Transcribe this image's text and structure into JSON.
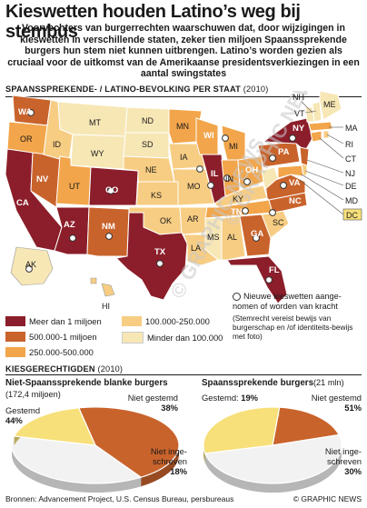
{
  "header": {
    "title": "Kieswetten houden Latino’s weg bij stembus",
    "intro": "Voorvechters van burgerrechten waarschuwen dat, door wijzigingen in kieswetten in verschillende staten, zeker tien miljoen Spaanssprekende burgers hun stem niet kunnen uitbrengen. Latino’s worden gezien als cruciaal voor de uitkomst van de Amerikaanse presidentsverkiezingen in een aantal swingstates"
  },
  "map_section": {
    "heading": "SPAANSSPREKENDE- / LATINO-BEVOLKING PER STAAT",
    "year": "(2010)"
  },
  "states": {
    "WA": "WA",
    "OR": "OR",
    "CA": "CA",
    "NV": "NV",
    "ID": "ID",
    "MT": "MT",
    "WY": "WY",
    "UT": "UT",
    "CO": "CO",
    "AZ": "AZ",
    "NM": "NM",
    "ND": "ND",
    "SD": "SD",
    "NE": "NE",
    "KS": "KS",
    "OK": "OK",
    "TX": "TX",
    "MN": "MN",
    "IA": "IA",
    "MO": "MO",
    "AR": "AR",
    "LA": "LA",
    "WI": "WI",
    "IL": "IL",
    "MI": "MI",
    "IN": "IN",
    "OH": "OH",
    "KY": "KY",
    "TN": "TN",
    "MS": "MS",
    "AL": "AL",
    "GA": "GA",
    "FL": "FL",
    "SC": "SC",
    "NC": "NC",
    "VA": "VA",
    "WV": "WV",
    "PA": "PA",
    "NY": "NY",
    "ME": "ME",
    "NH": "NH",
    "VT": "VT",
    "MA": "MA",
    "RI": "RI",
    "CT": "CT",
    "NJ": "NJ",
    "DE": "DE",
    "MD": "MD",
    "DC": "DC",
    "AK": "AK",
    "HI": "HI"
  },
  "legend": {
    "items": [
      {
        "label": "Meer dan 1 miljoen",
        "color": "#8b1e2a"
      },
      {
        "label": "500.000-1 miljoen",
        "color": "#c9632c"
      },
      {
        "label": "250.000-500.000",
        "color": "#f2a54a"
      },
      {
        "label": "100.000-250.000",
        "color": "#f7cd83"
      },
      {
        "label": "Minder dan 100.000",
        "color": "#f7e7b5"
      }
    ],
    "note": "Nieuwe kieswetten aange-nomen of worden van kracht",
    "note_sub": "(Stemrecht vereist bewijs van burgerschap en /of identiteits-bewijs met foto)"
  },
  "eligible_section": {
    "heading": "KIESGERECHTIGDEN",
    "year": "(2010)"
  },
  "pie_left": {
    "title": "Niet-Spaanssprekende blanke burgers",
    "subtitle": "(172,4 miljoen)",
    "label_voted": "Gestemd",
    "value_voted": "44%",
    "label_not_voted": "Niet gestemd",
    "value_not_voted": "38%",
    "label_not_registered_1": "Niet inge-",
    "label_not_registered_2": "schreven",
    "value_not_registered": "18%"
  },
  "pie_right": {
    "title": "Spaanssprekende burgers",
    "subtitle": "(21 mln)",
    "label_voted": "Gestemd:",
    "value_voted": "19%",
    "label_not_voted": "Niet gestemd",
    "value_not_voted": "51%",
    "label_not_registered_1": "Niet inge-",
    "label_not_registered_2": "schreven",
    "value_not_registered": "30%"
  },
  "chart_data": [
    {
      "type": "pie",
      "title": "Niet-Spaanssprekende blanke burgers",
      "subtitle": "(172,4 miljoen)",
      "categories": [
        "Gestemd",
        "Niet gestemd",
        "Niet ingeschreven"
      ],
      "values": [
        44,
        38,
        18
      ],
      "colors": [
        "#c9632c",
        "#f2f2f2",
        "#f7e07a"
      ]
    },
    {
      "type": "pie",
      "title": "Spaanssprekende burgers",
      "subtitle": "(21 mln)",
      "categories": [
        "Gestemd",
        "Niet gestemd",
        "Niet ingeschreven"
      ],
      "values": [
        19,
        51,
        30
      ],
      "colors": [
        "#c9632c",
        "#f2f2f2",
        "#f7e07a"
      ]
    }
  ],
  "footer": {
    "sources": "Bronnen: Advancement Project, U.S. Census Bureau, persbureaus",
    "credit": "© GRAPHIC NEWS"
  },
  "watermark": "© GRAPHIC NEWS"
}
